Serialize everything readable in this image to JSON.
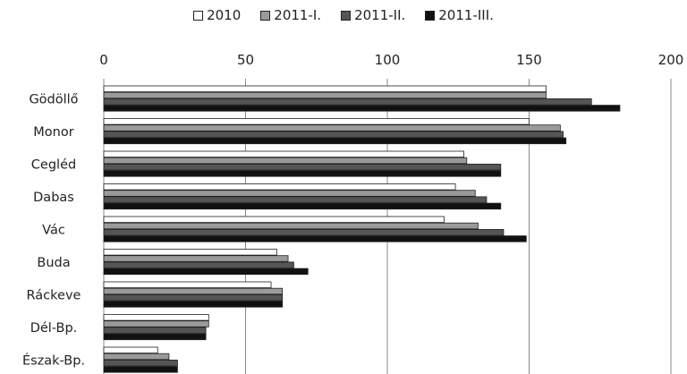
{
  "chart_data": {
    "type": "bar",
    "orientation": "horizontal",
    "xlim": [
      0,
      200
    ],
    "x_ticks": [
      "0",
      "50",
      "100",
      "150",
      "200"
    ],
    "grid": true,
    "legend_position": "top",
    "categories": [
      "Gödöllő",
      "Monor",
      "Cegléd",
      "Dabas",
      "Vác",
      "Buda",
      "Ráckeve",
      "Dél-Bp.",
      "Észak-Bp."
    ],
    "series": [
      {
        "name": "2010",
        "color": "#ffffff",
        "values": [
          156,
          150,
          127,
          124,
          120,
          61,
          59,
          37,
          19
        ]
      },
      {
        "name": "2011-I.",
        "color": "#9a9a9a",
        "values": [
          156,
          161,
          128,
          131,
          132,
          65,
          63,
          37,
          23
        ]
      },
      {
        "name": "2011-II.",
        "color": "#555555",
        "values": [
          172,
          162,
          140,
          135,
          141,
          67,
          63,
          36,
          26
        ]
      },
      {
        "name": "2011-III.",
        "color": "#111111",
        "values": [
          182,
          163,
          140,
          140,
          149,
          72,
          63,
          36,
          26
        ]
      }
    ]
  }
}
